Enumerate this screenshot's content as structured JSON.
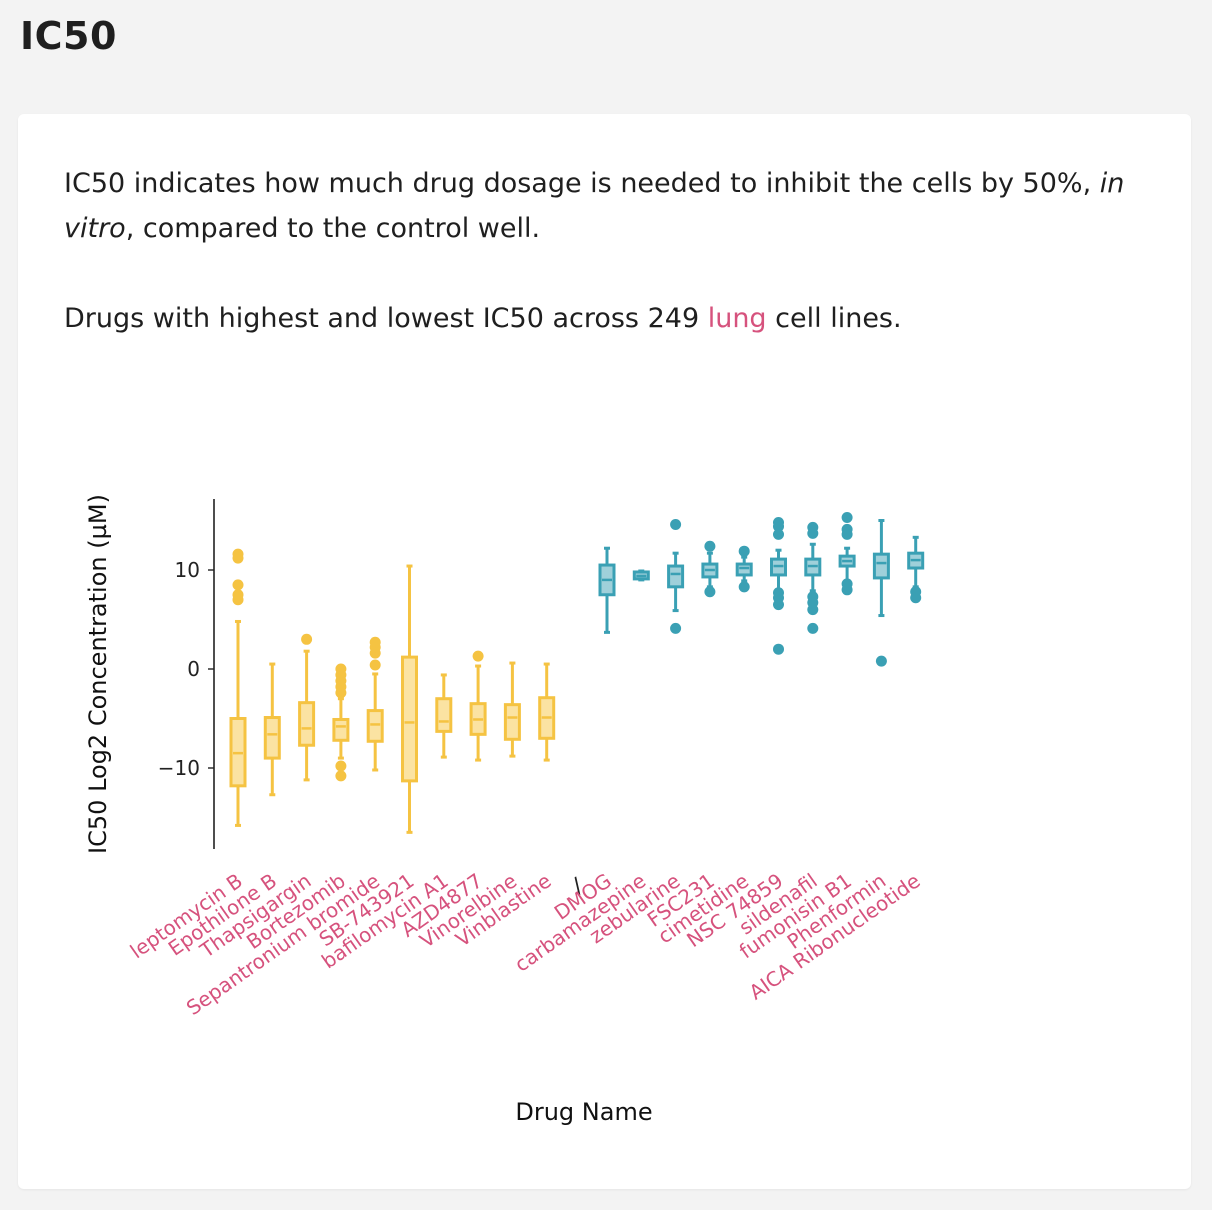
{
  "page": {
    "title": "IC50",
    "desc_main": "IC50 indicates how much drug dosage is needed to inhibit the cells by 50%,",
    "desc_italic": "in vitro",
    "desc_end": ", compared to the control well.",
    "desc2_pre": "Drugs with highest and lowest IC50 across 249 ",
    "desc2_link": "lung",
    "desc2_post": " cell lines."
  },
  "colors": {
    "high": "#f5c342",
    "high_fill": "#fbe3a2",
    "low": "#3aa0b4",
    "low_fill": "#9fd0da",
    "label": "#d6527d"
  },
  "chart_data": {
    "type": "box",
    "xlabel": "Drug Name",
    "ylabel": "IC50 Log2 Concentration (µM)",
    "ylim": [
      -18,
      17
    ],
    "yticks": [
      -10,
      0,
      10
    ],
    "yticklabels": [
      "−10",
      "0",
      "10"
    ],
    "separator": "/",
    "groups": [
      {
        "color": "high",
        "drugs": [
          {
            "name": "leptomycin B",
            "min": -15.8,
            "q1": -11.8,
            "median": -8.5,
            "q3": -5.0,
            "max": 4.8,
            "outliers": [
              7.0,
              7.5,
              8.5,
              11.2,
              11.6
            ]
          },
          {
            "name": "Epothilone B",
            "min": -12.7,
            "q1": -9.0,
            "median": -6.6,
            "q3": -4.9,
            "max": 0.5,
            "outliers": []
          },
          {
            "name": "Thapsigargin",
            "min": -11.2,
            "q1": -7.7,
            "median": -6.0,
            "q3": -3.4,
            "max": 1.8,
            "outliers": [
              3.0
            ]
          },
          {
            "name": "Bortezomib",
            "min": -9.0,
            "q1": -7.2,
            "median": -5.8,
            "q3": -5.1,
            "max": -3.0,
            "outliers": [
              -10.8,
              -9.8,
              -2.4,
              -1.8,
              -1.2,
              -0.6,
              0.0
            ]
          },
          {
            "name": "Sepantronium bromide",
            "min": -10.2,
            "q1": -7.3,
            "median": -5.6,
            "q3": -4.2,
            "max": -0.5,
            "outliers": [
              0.4,
              1.6,
              2.2,
              2.7
            ]
          },
          {
            "name": "SB-743921",
            "min": -16.5,
            "q1": -11.3,
            "median": -5.4,
            "q3": 1.2,
            "max": 10.4,
            "outliers": []
          },
          {
            "name": "bafilomycin A1",
            "min": -8.9,
            "q1": -6.3,
            "median": -5.3,
            "q3": -3.0,
            "max": -0.6,
            "outliers": []
          },
          {
            "name": "AZD4877",
            "min": -9.2,
            "q1": -6.6,
            "median": -5.1,
            "q3": -3.5,
            "max": 0.3,
            "outliers": [
              1.3
            ]
          },
          {
            "name": "Vinorelbine",
            "min": -8.8,
            "q1": -7.1,
            "median": -4.9,
            "q3": -3.6,
            "max": 0.6,
            "outliers": []
          },
          {
            "name": "Vinblastine",
            "min": -9.2,
            "q1": -7.0,
            "median": -4.9,
            "q3": -2.9,
            "max": 0.5,
            "outliers": []
          }
        ]
      },
      {
        "color": "low",
        "drugs": [
          {
            "name": "DMOG",
            "min": 3.7,
            "q1": 7.5,
            "median": 9.0,
            "q3": 10.5,
            "max": 12.2,
            "outliers": []
          },
          {
            "name": "carbamazepine",
            "min": 9.0,
            "q1": 9.1,
            "median": 9.4,
            "q3": 9.8,
            "max": 9.9,
            "outliers": []
          },
          {
            "name": "zebularine",
            "min": 5.9,
            "q1": 8.3,
            "median": 9.6,
            "q3": 10.4,
            "max": 11.7,
            "outliers": [
              4.1,
              14.6
            ]
          },
          {
            "name": "FSC231",
            "min": 8.3,
            "q1": 9.3,
            "median": 10.0,
            "q3": 10.6,
            "max": 11.7,
            "outliers": [
              7.8,
              12.4
            ]
          },
          {
            "name": "cimetidine",
            "min": 8.9,
            "q1": 9.5,
            "median": 10.2,
            "q3": 10.6,
            "max": 11.3,
            "outliers": [
              8.3,
              11.9
            ]
          },
          {
            "name": "NSC 74859",
            "min": 8.0,
            "q1": 9.5,
            "median": 10.4,
            "q3": 11.1,
            "max": 12.0,
            "outliers": [
              2.0,
              6.5,
              7.2,
              7.7,
              13.6,
              14.4,
              14.8
            ]
          },
          {
            "name": "sildenafil",
            "min": 7.9,
            "q1": 9.5,
            "median": 10.4,
            "q3": 11.1,
            "max": 12.6,
            "outliers": [
              4.1,
              6.0,
              6.7,
              7.3,
              13.7,
              14.3
            ]
          },
          {
            "name": "fumonisin B1",
            "min": 8.7,
            "q1": 10.4,
            "median": 10.9,
            "q3": 11.4,
            "max": 12.2,
            "outliers": [
              8.0,
              8.6,
              13.6,
              14.1,
              15.3
            ]
          },
          {
            "name": "Phenformin",
            "min": 5.4,
            "q1": 9.2,
            "median": 10.7,
            "q3": 11.6,
            "max": 15.0,
            "outliers": [
              0.8
            ]
          },
          {
            "name": "AICA Ribonucleotide",
            "min": 8.3,
            "q1": 10.2,
            "median": 11.0,
            "q3": 11.7,
            "max": 13.3,
            "outliers": [
              7.2,
              7.8
            ]
          }
        ]
      }
    ]
  }
}
